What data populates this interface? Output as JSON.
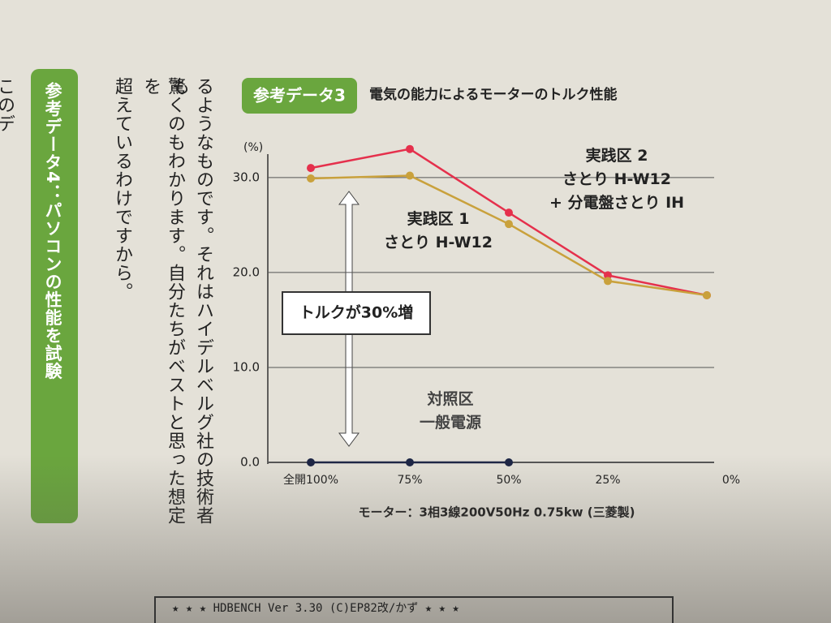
{
  "sidebar": {
    "label": "参考データ4：パソコンの性能を試験"
  },
  "body_text": [
    "このデ",
    "るようなものです。それはハイデルベルグ社の技術者も",
    "驚くのもわかります。自分たちがベストと思った想定を",
    "超えているわけですから。"
  ],
  "footer": {
    "text": "★ ★ ★  HDBENCH Ver 3.30 (C)EP82改/かず ★ ★ ★"
  },
  "chart_data": {
    "type": "line",
    "badge": "参考データ3",
    "title": "電気の能力によるモーターのトルク性能",
    "y_unit": "(%)",
    "x_label": "モーター：3相3線200V50Hz 0.75kw (三菱製)",
    "annotation": "トルクが30%増",
    "categories": [
      "全開100%",
      "75%",
      "50%",
      "25%",
      "0%"
    ],
    "series": [
      {
        "name": "実践区 2\nさとり H-W12\n+ 分電盤さとり IH",
        "color": "#e5304c",
        "values": [
          31.0,
          33.0,
          26.3,
          19.7,
          17.6
        ]
      },
      {
        "name": "実践区 1\nさとり H-W12",
        "color": "#c9a13c",
        "values": [
          29.9,
          30.2,
          25.1,
          19.1,
          17.6
        ]
      },
      {
        "name": "対照区\n一般電源",
        "color": "#1c2545",
        "values": [
          0,
          0,
          0,
          null,
          null
        ]
      }
    ],
    "ylim": [
      0,
      34
    ],
    "yticks": [
      {
        "value": 0,
        "label": "0.0"
      },
      {
        "value": 10,
        "label": "10.0"
      },
      {
        "value": 20,
        "label": "20.0"
      },
      {
        "value": 30,
        "label": "30.0"
      }
    ],
    "grid": true
  }
}
